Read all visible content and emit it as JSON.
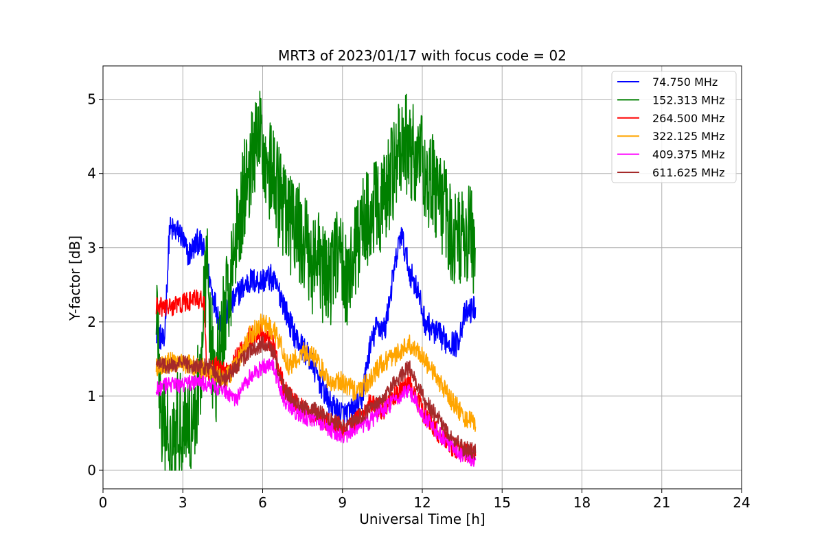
{
  "chart_data": {
    "type": "line",
    "title": "MRT3 of 2023/01/17 with focus code = 02",
    "xlabel": "Universal Time [h]",
    "ylabel": "Y-factor [dB]",
    "xlim": [
      0,
      24
    ],
    "ylim": [
      -0.25,
      5.45
    ],
    "xticks": [
      0,
      3,
      6,
      9,
      12,
      15,
      18,
      21,
      24
    ],
    "yticks": [
      0,
      1,
      2,
      3,
      4,
      5
    ],
    "grid": true,
    "legend_position": "top-right",
    "series": [
      {
        "name": " 74.750 MHz",
        "color": "#0000ff",
        "noise": 0.18,
        "points": [
          [
            2.0,
            1.9
          ],
          [
            2.3,
            1.7
          ],
          [
            2.5,
            3.25
          ],
          [
            2.9,
            3.2
          ],
          [
            3.2,
            2.9
          ],
          [
            3.6,
            3.1
          ],
          [
            3.85,
            2.9
          ],
          [
            4.1,
            2.4
          ],
          [
            4.4,
            2.0
          ],
          [
            4.8,
            2.2
          ],
          [
            5.1,
            2.4
          ],
          [
            5.5,
            2.55
          ],
          [
            5.9,
            2.55
          ],
          [
            6.3,
            2.6
          ],
          [
            6.7,
            2.35
          ],
          [
            7.0,
            2.0
          ],
          [
            7.3,
            1.75
          ],
          [
            7.6,
            1.6
          ],
          [
            7.9,
            1.4
          ],
          [
            8.2,
            1.15
          ],
          [
            8.5,
            0.9
          ],
          [
            8.8,
            0.8
          ],
          [
            9.1,
            0.75
          ],
          [
            9.4,
            0.8
          ],
          [
            9.7,
            0.9
          ],
          [
            10.0,
            1.6
          ],
          [
            10.3,
            1.95
          ],
          [
            10.6,
            1.9
          ],
          [
            10.9,
            2.6
          ],
          [
            11.2,
            3.2
          ],
          [
            11.5,
            2.7
          ],
          [
            11.8,
            2.45
          ],
          [
            12.1,
            2.0
          ],
          [
            12.5,
            1.85
          ],
          [
            12.9,
            1.75
          ],
          [
            13.3,
            1.7
          ],
          [
            13.6,
            2.1
          ],
          [
            14.0,
            2.2
          ]
        ]
      },
      {
        "name": "152.313 MHz",
        "color": "#008000",
        "noise": 0.7,
        "points": [
          [
            2.0,
            2.4
          ],
          [
            2.2,
            0.5
          ],
          [
            2.6,
            0.55
          ],
          [
            3.0,
            0.7
          ],
          [
            3.4,
            0.6
          ],
          [
            3.7,
            1.5
          ],
          [
            3.9,
            2.8
          ],
          [
            4.2,
            1.0
          ],
          [
            4.5,
            1.9
          ],
          [
            4.8,
            2.6
          ],
          [
            5.1,
            3.4
          ],
          [
            5.5,
            4.1
          ],
          [
            5.9,
            4.5
          ],
          [
            6.2,
            4.1
          ],
          [
            6.6,
            3.7
          ],
          [
            7.0,
            3.3
          ],
          [
            7.4,
            3.2
          ],
          [
            7.8,
            2.8
          ],
          [
            8.1,
            2.8
          ],
          [
            8.4,
            2.5
          ],
          [
            8.8,
            2.9
          ],
          [
            9.2,
            2.6
          ],
          [
            9.5,
            2.9
          ],
          [
            9.8,
            3.4
          ],
          [
            10.2,
            3.5
          ],
          [
            10.6,
            3.6
          ],
          [
            11.0,
            4.2
          ],
          [
            11.4,
            4.4
          ],
          [
            11.8,
            4.2
          ],
          [
            12.2,
            4.0
          ],
          [
            12.6,
            3.7
          ],
          [
            13.0,
            3.3
          ],
          [
            13.4,
            3.1
          ],
          [
            13.8,
            3.2
          ],
          [
            14.0,
            3.0
          ]
        ]
      },
      {
        "name": "264.500 MHz",
        "color": "#ff0000",
        "noise": 0.14,
        "points": [
          [
            2.0,
            2.2
          ],
          [
            2.5,
            2.2
          ],
          [
            3.0,
            2.25
          ],
          [
            3.5,
            2.3
          ],
          [
            3.8,
            2.3
          ],
          [
            3.9,
            1.3
          ],
          [
            4.3,
            1.4
          ],
          [
            4.6,
            1.3
          ],
          [
            5.0,
            1.5
          ],
          [
            5.5,
            1.8
          ],
          [
            6.0,
            1.85
          ],
          [
            6.4,
            1.7
          ],
          [
            6.8,
            1.1
          ],
          [
            7.2,
            0.9
          ],
          [
            7.6,
            0.8
          ],
          [
            8.0,
            0.75
          ],
          [
            8.5,
            0.65
          ],
          [
            9.0,
            0.55
          ],
          [
            9.5,
            0.65
          ],
          [
            10.0,
            0.9
          ],
          [
            10.5,
            0.8
          ],
          [
            11.0,
            1.0
          ],
          [
            11.5,
            1.2
          ],
          [
            12.0,
            0.8
          ],
          [
            12.5,
            0.55
          ],
          [
            13.0,
            0.35
          ],
          [
            13.5,
            0.25
          ],
          [
            14.0,
            0.2
          ]
        ]
      },
      {
        "name": "322.125 MHz",
        "color": "#ffa500",
        "noise": 0.14,
        "points": [
          [
            2.0,
            1.4
          ],
          [
            2.5,
            1.45
          ],
          [
            3.0,
            1.45
          ],
          [
            3.5,
            1.4
          ],
          [
            4.0,
            1.35
          ],
          [
            4.5,
            1.2
          ],
          [
            5.0,
            1.4
          ],
          [
            5.5,
            1.8
          ],
          [
            6.0,
            2.0
          ],
          [
            6.5,
            1.85
          ],
          [
            7.0,
            1.4
          ],
          [
            7.5,
            1.6
          ],
          [
            8.0,
            1.5
          ],
          [
            8.5,
            1.2
          ],
          [
            9.0,
            1.2
          ],
          [
            9.5,
            1.05
          ],
          [
            10.0,
            1.2
          ],
          [
            10.5,
            1.45
          ],
          [
            11.0,
            1.55
          ],
          [
            11.5,
            1.7
          ],
          [
            12.0,
            1.55
          ],
          [
            12.5,
            1.25
          ],
          [
            13.0,
            1.0
          ],
          [
            13.5,
            0.75
          ],
          [
            14.0,
            0.6
          ]
        ]
      },
      {
        "name": "409.375 MHz",
        "color": "#ff00ff",
        "noise": 0.11,
        "points": [
          [
            2.0,
            1.1
          ],
          [
            2.5,
            1.15
          ],
          [
            3.0,
            1.15
          ],
          [
            3.5,
            1.2
          ],
          [
            4.0,
            1.15
          ],
          [
            4.5,
            1.1
          ],
          [
            5.0,
            0.95
          ],
          [
            5.5,
            1.25
          ],
          [
            6.0,
            1.4
          ],
          [
            6.4,
            1.4
          ],
          [
            6.8,
            0.95
          ],
          [
            7.2,
            0.8
          ],
          [
            7.6,
            0.7
          ],
          [
            8.0,
            0.7
          ],
          [
            8.5,
            0.55
          ],
          [
            9.0,
            0.45
          ],
          [
            9.5,
            0.55
          ],
          [
            10.0,
            0.65
          ],
          [
            10.5,
            0.8
          ],
          [
            11.0,
            0.95
          ],
          [
            11.5,
            1.1
          ],
          [
            12.0,
            0.75
          ],
          [
            12.5,
            0.55
          ],
          [
            13.0,
            0.35
          ],
          [
            13.5,
            0.2
          ],
          [
            14.0,
            0.15
          ]
        ]
      },
      {
        "name": "611.625 MHz",
        "color": "#a52a2a",
        "noise": 0.11,
        "points": [
          [
            2.0,
            1.45
          ],
          [
            2.5,
            1.4
          ],
          [
            3.0,
            1.45
          ],
          [
            3.5,
            1.4
          ],
          [
            4.0,
            1.4
          ],
          [
            4.5,
            1.2
          ],
          [
            5.0,
            1.4
          ],
          [
            5.5,
            1.6
          ],
          [
            6.0,
            1.7
          ],
          [
            6.4,
            1.6
          ],
          [
            6.8,
            1.1
          ],
          [
            7.2,
            0.95
          ],
          [
            7.6,
            0.85
          ],
          [
            8.0,
            0.8
          ],
          [
            8.5,
            0.7
          ],
          [
            9.0,
            0.6
          ],
          [
            9.5,
            0.7
          ],
          [
            10.0,
            0.8
          ],
          [
            10.5,
            0.95
          ],
          [
            11.0,
            1.2
          ],
          [
            11.5,
            1.4
          ],
          [
            12.0,
            1.0
          ],
          [
            12.5,
            0.75
          ],
          [
            13.0,
            0.5
          ],
          [
            13.5,
            0.3
          ],
          [
            14.0,
            0.25
          ]
        ]
      }
    ]
  }
}
